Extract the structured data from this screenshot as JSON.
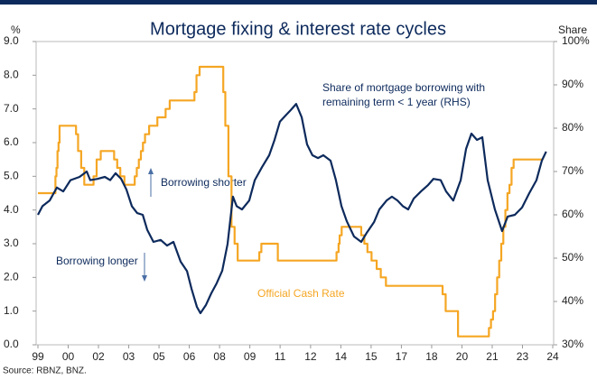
{
  "chart_data": {
    "type": "line",
    "title": "Mortgage fixing & interest rate cycles",
    "y_label": "%",
    "y2_label": "Share",
    "source": "Source: RBNZ, BNZ.",
    "annotations": [
      "Borrowing shorter",
      "Borrowing longer"
    ],
    "xlim": [
      1999,
      2024
    ],
    "xticks": [
      {
        "value": 1999,
        "label": "99"
      },
      {
        "value": 2000.47,
        "label": "00"
      },
      {
        "value": 2001.94,
        "label": "02"
      },
      {
        "value": 2003.41,
        "label": "03"
      },
      {
        "value": 2004.88,
        "label": "05"
      },
      {
        "value": 2006.35,
        "label": "06"
      },
      {
        "value": 2007.82,
        "label": "08"
      },
      {
        "value": 2009.29,
        "label": "09"
      },
      {
        "value": 2010.76,
        "label": "11"
      },
      {
        "value": 2012.24,
        "label": "12"
      },
      {
        "value": 2013.71,
        "label": "14"
      },
      {
        "value": 2015.18,
        "label": "15"
      },
      {
        "value": 2016.65,
        "label": "17"
      },
      {
        "value": 2018.12,
        "label": "18"
      },
      {
        "value": 2019.59,
        "label": "20"
      },
      {
        "value": 2021.06,
        "label": "21"
      },
      {
        "value": 2022.53,
        "label": "23"
      },
      {
        "value": 2024,
        "label": "24"
      }
    ],
    "ylim": [
      0,
      9
    ],
    "yticks": [
      {
        "value": 0,
        "label": "0.0"
      },
      {
        "value": 1,
        "label": "1.0"
      },
      {
        "value": 2,
        "label": "2.0"
      },
      {
        "value": 3,
        "label": "3.0"
      },
      {
        "value": 4,
        "label": "4.0"
      },
      {
        "value": 5,
        "label": "5.0"
      },
      {
        "value": 6,
        "label": "6.0"
      },
      {
        "value": 7,
        "label": "7.0"
      },
      {
        "value": 8,
        "label": "8.0"
      },
      {
        "value": 9,
        "label": "9.0"
      }
    ],
    "y2lim": [
      30,
      100
    ],
    "y2ticks": [
      {
        "value": 30,
        "label": "30%"
      },
      {
        "value": 40,
        "label": "40%"
      },
      {
        "value": 50,
        "label": "50%"
      },
      {
        "value": 60,
        "label": "60%"
      },
      {
        "value": 70,
        "label": "70%"
      },
      {
        "value": 80,
        "label": "80%"
      },
      {
        "value": 90,
        "label": "90%"
      },
      {
        "value": 100,
        "label": "100%"
      }
    ],
    "series": [
      {
        "name": "Official Cash Rate",
        "color": "#f5a623",
        "step": true,
        "x": [
          1999.0,
          1999.85,
          1999.9,
          1999.95,
          2000.0,
          2000.05,
          2000.85,
          2000.95,
          2001.1,
          2001.25,
          2001.7,
          2001.85,
          2002.05,
          2002.7,
          2002.85,
          2003.0,
          2003.2,
          2003.7,
          2003.8,
          2003.9,
          2004.0,
          2004.1,
          2004.2,
          2004.4,
          2004.8,
          2005.2,
          2005.4,
          2006.6,
          2006.7,
          2006.85,
          2008.0,
          2008.1,
          2008.25,
          2008.4,
          2008.55,
          2008.7,
          2009.75,
          2009.85,
          2010.65,
          2013.5,
          2013.6,
          2013.65,
          2013.75,
          2014.7,
          2014.85,
          2015.0,
          2015.2,
          2015.45,
          2015.65,
          2015.9,
          2018.65,
          2018.8,
          2019.4,
          2020.9,
          2021.0,
          2021.1,
          2021.2,
          2021.3,
          2021.4,
          2021.5,
          2021.6,
          2021.7,
          2021.8,
          2021.9,
          2022.0,
          2022.1,
          2023.5
        ],
        "values": [
          4.5,
          5.0,
          5.25,
          5.75,
          6.0,
          6.5,
          6.25,
          5.75,
          5.25,
          4.75,
          5.0,
          5.5,
          5.75,
          5.5,
          5.25,
          5.0,
          4.75,
          5.0,
          5.25,
          5.5,
          5.75,
          6.0,
          6.25,
          6.5,
          6.75,
          7.0,
          7.25,
          7.5,
          8.0,
          8.25,
          7.5,
          6.5,
          5.0,
          3.5,
          3.0,
          2.5,
          2.75,
          3.0,
          2.5,
          2.75,
          3.0,
          3.25,
          3.5,
          3.25,
          3.0,
          2.75,
          2.5,
          2.25,
          2.0,
          1.75,
          1.5,
          1.0,
          0.25,
          0.5,
          0.75,
          1.0,
          1.5,
          2.0,
          2.5,
          3.0,
          3.5,
          4.0,
          4.5,
          4.75,
          5.25,
          5.5,
          5.5
        ]
      },
      {
        "name": "Share of mortgage borrowing with remaining term < 1 year (RHS)",
        "color": "#0d2a5c",
        "axis": "y2",
        "x": [
          1999.0,
          1999.22,
          1999.57,
          1999.92,
          2000.23,
          2000.58,
          2001.02,
          2001.37,
          2001.54,
          2001.89,
          2002.25,
          2002.51,
          2002.77,
          2003.04,
          2003.3,
          2003.56,
          2003.82,
          2004.09,
          2004.31,
          2004.61,
          2004.96,
          2005.27,
          2005.58,
          2005.93,
          2006.24,
          2006.46,
          2006.72,
          2006.89,
          2007.16,
          2007.42,
          2007.68,
          2007.95,
          2008.21,
          2008.47,
          2008.65,
          2008.91,
          2009.26,
          2009.53,
          2009.88,
          2010.23,
          2010.49,
          2010.75,
          2011.02,
          2011.28,
          2011.54,
          2011.81,
          2012.07,
          2012.33,
          2012.6,
          2012.86,
          2013.21,
          2013.47,
          2013.74,
          2014.0,
          2014.35,
          2014.7,
          2014.96,
          2015.32,
          2015.58,
          2015.93,
          2016.19,
          2016.46,
          2016.72,
          2016.98,
          2017.25,
          2017.6,
          2017.95,
          2018.21,
          2018.56,
          2018.82,
          2019.17,
          2019.53,
          2019.79,
          2020.05,
          2020.32,
          2020.58,
          2020.84,
          2021.19,
          2021.54,
          2021.81,
          2022.16,
          2022.51,
          2022.86,
          2023.21,
          2023.47,
          2023.68
        ],
        "values": [
          60,
          62,
          63.3,
          66.3,
          65.4,
          68,
          68.75,
          70,
          68,
          68.3,
          68.75,
          68,
          69.6,
          68.3,
          65.8,
          62,
          60.4,
          60,
          56.5,
          53.75,
          54.2,
          52.9,
          53.75,
          49.2,
          47,
          42.9,
          38.75,
          37.3,
          39.2,
          41.9,
          44.2,
          47.1,
          53.3,
          64.2,
          62,
          61.25,
          63.3,
          68,
          71,
          73.75,
          77.3,
          81.5,
          82.9,
          84.2,
          85.6,
          82.5,
          76.25,
          73.75,
          73.1,
          73.75,
          72.5,
          68,
          62,
          58.5,
          55,
          53.75,
          55.8,
          58.3,
          61.25,
          63.3,
          64.2,
          63.3,
          62,
          61.25,
          63.75,
          65.4,
          66.9,
          68.3,
          68,
          65.4,
          63.3,
          68,
          75.2,
          78.75,
          77.3,
          77.9,
          68,
          61.25,
          56.25,
          59.6,
          60,
          61.7,
          65,
          68,
          72.5,
          74.6
        ]
      }
    ]
  }
}
